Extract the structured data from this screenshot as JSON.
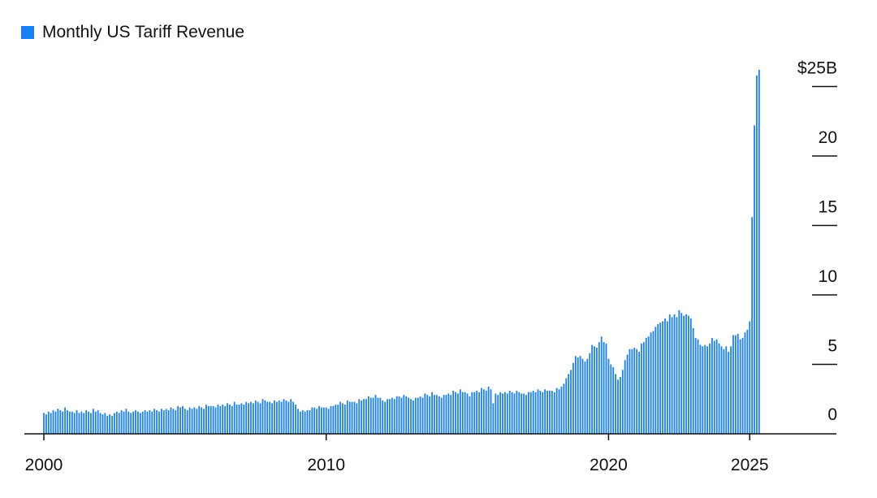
{
  "chart_data": {
    "type": "bar",
    "title": "",
    "xlabel": "",
    "ylabel": "",
    "legend": "top-left",
    "series": [
      {
        "name": "Monthly US Tariff Revenue",
        "color": "#1a7ff2"
      }
    ],
    "x_ticks": [
      "2000",
      "2010",
      "2020",
      "2025"
    ],
    "y_ticks": [
      "0",
      "5",
      "10",
      "15",
      "20",
      "$25B"
    ],
    "y_tick_values": [
      0,
      5,
      10,
      15,
      20,
      25
    ],
    "ylim": [
      0,
      27
    ],
    "xlim": [
      "2000-01",
      "2025-12"
    ],
    "grid": false,
    "year_values": [
      {
        "year": 2000,
        "values": [
          1.5,
          1.4,
          1.6,
          1.5,
          1.7,
          1.6,
          1.8,
          1.7,
          1.6,
          1.9,
          1.7,
          1.6
        ]
      },
      {
        "year": 2001,
        "values": [
          1.6,
          1.5,
          1.7,
          1.5,
          1.6,
          1.5,
          1.7,
          1.6,
          1.5,
          1.8,
          1.6,
          1.7
        ]
      },
      {
        "year": 2002,
        "values": [
          1.5,
          1.4,
          1.5,
          1.3,
          1.4,
          1.3,
          1.5,
          1.6,
          1.5,
          1.7,
          1.6,
          1.8
        ]
      },
      {
        "year": 2003,
        "values": [
          1.6,
          1.5,
          1.6,
          1.7,
          1.6,
          1.5,
          1.6,
          1.7,
          1.6,
          1.7,
          1.6,
          1.8
        ]
      },
      {
        "year": 2004,
        "values": [
          1.7,
          1.6,
          1.8,
          1.7,
          1.8,
          1.7,
          1.9,
          1.8,
          1.7,
          2.0,
          1.9,
          2.0
        ]
      },
      {
        "year": 2005,
        "values": [
          1.8,
          1.7,
          1.9,
          1.8,
          1.9,
          1.8,
          2.0,
          1.9,
          1.8,
          2.1,
          2.0,
          2.0
        ]
      },
      {
        "year": 2006,
        "values": [
          2.0,
          1.9,
          2.1,
          2.0,
          2.1,
          2.0,
          2.2,
          2.1,
          2.0,
          2.3,
          2.1,
          2.1
        ]
      },
      {
        "year": 2007,
        "values": [
          2.2,
          2.1,
          2.3,
          2.2,
          2.3,
          2.2,
          2.4,
          2.3,
          2.2,
          2.5,
          2.4,
          2.3
        ]
      },
      {
        "year": 2008,
        "values": [
          2.3,
          2.2,
          2.4,
          2.3,
          2.4,
          2.3,
          2.5,
          2.4,
          2.3,
          2.5,
          2.3,
          2.1
        ]
      },
      {
        "year": 2009,
        "values": [
          1.8,
          1.6,
          1.7,
          1.6,
          1.7,
          1.7,
          1.9,
          1.9,
          1.8,
          2.0,
          1.9,
          1.9
        ]
      },
      {
        "year": 2010,
        "values": [
          1.9,
          1.8,
          2.0,
          2.0,
          2.1,
          2.1,
          2.3,
          2.2,
          2.1,
          2.4,
          2.3,
          2.3
        ]
      },
      {
        "year": 2011,
        "values": [
          2.3,
          2.2,
          2.5,
          2.4,
          2.5,
          2.5,
          2.7,
          2.6,
          2.6,
          2.8,
          2.6,
          2.6
        ]
      },
      {
        "year": 2012,
        "values": [
          2.4,
          2.3,
          2.5,
          2.5,
          2.6,
          2.5,
          2.7,
          2.7,
          2.6,
          2.8,
          2.7,
          2.6
        ]
      },
      {
        "year": 2013,
        "values": [
          2.5,
          2.4,
          2.6,
          2.6,
          2.7,
          2.6,
          2.9,
          2.8,
          2.7,
          3.0,
          2.8,
          2.8
        ]
      },
      {
        "year": 2014,
        "values": [
          2.7,
          2.6,
          2.8,
          2.8,
          2.9,
          2.8,
          3.1,
          3.0,
          2.9,
          3.2,
          3.0,
          3.0
        ]
      },
      {
        "year": 2015,
        "values": [
          2.9,
          2.7,
          3.0,
          3.0,
          3.1,
          3.0,
          3.3,
          3.2,
          3.1,
          3.4,
          3.2,
          2.2
        ]
      },
      {
        "year": 2016,
        "values": [
          2.9,
          2.8,
          3.0,
          2.9,
          3.0,
          2.9,
          3.1,
          3.0,
          2.9,
          3.1,
          3.0,
          2.9
        ]
      },
      {
        "year": 2017,
        "values": [
          2.9,
          2.8,
          3.0,
          3.0,
          3.1,
          3.0,
          3.2,
          3.1,
          3.0,
          3.2,
          3.1,
          3.1
        ]
      },
      {
        "year": 2018,
        "values": [
          3.1,
          3.0,
          3.3,
          3.2,
          3.4,
          3.6,
          4.0,
          4.3,
          4.6,
          5.1,
          5.6,
          5.5
        ]
      },
      {
        "year": 2019,
        "values": [
          5.6,
          5.4,
          5.2,
          5.4,
          5.8,
          6.4,
          6.3,
          6.2,
          6.6,
          7.0,
          6.6,
          6.5
        ]
      },
      {
        "year": 2020,
        "values": [
          5.4,
          5.0,
          4.8,
          4.3,
          3.9,
          4.1,
          4.6,
          5.3,
          5.7,
          6.1,
          6.1,
          6.2
        ]
      },
      {
        "year": 2021,
        "values": [
          6.1,
          5.9,
          6.5,
          6.6,
          6.9,
          7.0,
          7.3,
          7.4,
          7.7,
          7.9,
          8.0,
          8.1
        ]
      },
      {
        "year": 2022,
        "values": [
          8.3,
          8.1,
          8.6,
          8.4,
          8.6,
          8.4,
          8.9,
          8.7,
          8.5,
          8.6,
          8.5,
          8.3
        ]
      },
      {
        "year": 2023,
        "values": [
          7.6,
          6.9,
          6.8,
          6.4,
          6.3,
          6.4,
          6.3,
          6.5,
          6.9,
          6.7,
          6.8,
          6.5
        ]
      },
      {
        "year": 2024,
        "values": [
          6.3,
          6.1,
          6.3,
          5.9,
          6.3,
          7.1,
          7.1,
          7.2,
          6.8,
          6.9,
          7.3,
          7.5
        ]
      },
      {
        "year": 2025,
        "values": [
          8.1,
          15.6,
          22.2,
          25.8,
          26.2
        ]
      }
    ]
  }
}
